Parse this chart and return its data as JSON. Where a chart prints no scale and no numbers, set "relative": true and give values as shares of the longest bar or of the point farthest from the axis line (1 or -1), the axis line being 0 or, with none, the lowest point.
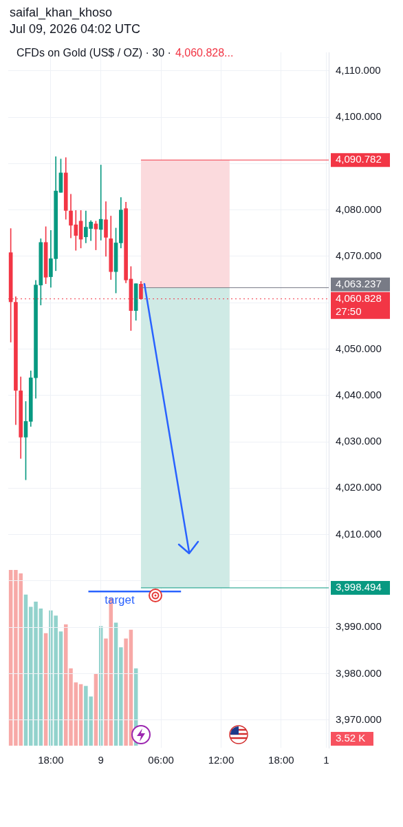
{
  "chart_data": [
    {
      "type": "candlestick",
      "title": "saifal_khan_khoso",
      "subtitle": "Jul 09, 2026 04:02 UTC",
      "categories": [
        null,
        null,
        null,
        null,
        null,
        null,
        null,
        null,
        "18:00",
        null,
        null,
        null,
        null,
        null,
        null,
        null,
        null,
        null,
        "9",
        null,
        null,
        null,
        null,
        null,
        null,
        null,
        null,
        null,
        null,
        null,
        "06:00",
        null,
        null,
        null,
        null,
        null,
        null,
        null,
        null,
        null,
        null,
        null,
        "12:00",
        null,
        null,
        null,
        null,
        null,
        null,
        null,
        null,
        null,
        null,
        null,
        "18:00",
        null,
        null,
        null,
        null,
        null,
        null,
        null,
        null,
        "1"
      ],
      "ohlc": [
        [
          4070.8,
          4076.0,
          4051.5,
          4060.2
        ],
        [
          4060.1,
          4061.3,
          4033.7,
          4041.1
        ],
        [
          4041.0,
          4044.0,
          4026.4,
          4031.0
        ],
        [
          4031.0,
          4038.7,
          4021.8,
          4034.4
        ],
        [
          4034.4,
          4045.3,
          4033.3,
          4043.8
        ],
        [
          4043.8,
          4064.8,
          4039.4,
          4063.8
        ],
        [
          4063.8,
          4073.8,
          4059.5,
          4073.0
        ],
        [
          4073.0,
          4076.4,
          4064.1,
          4065.5
        ],
        [
          4065.6,
          4075.6,
          4063.3,
          4069.5
        ],
        [
          4069.5,
          4091.5,
          4066.9,
          4084.1
        ],
        [
          4083.8,
          4091.0,
          4083.8,
          4088.0
        ],
        [
          4088.0,
          4091.3,
          4078.0,
          4079.9
        ],
        [
          4079.8,
          4083.4,
          4074.0,
          4076.7
        ],
        [
          4076.8,
          4079.9,
          4071.3,
          4074.5
        ],
        [
          4077.6,
          4079.9,
          4071.8,
          4073.7
        ],
        [
          4074.2,
          4079.8,
          4072.9,
          4076.3
        ],
        [
          4076.0,
          4077.7,
          4073.4,
          4077.4
        ],
        [
          4077.0,
          4077.6,
          4071.4,
          4075.9
        ],
        [
          4075.8,
          4089.7,
          4073.5,
          4078.0
        ],
        [
          4077.9,
          4081.8,
          4070.0,
          4074.1
        ],
        [
          4073.8,
          4078.7,
          4065.0,
          4066.7
        ],
        [
          4066.7,
          4076.1,
          4062.1,
          4072.9
        ],
        [
          4072.9,
          4082.7,
          4071.8,
          4080.0
        ],
        [
          4080.3,
          4081.7,
          4064.3,
          4064.9
        ],
        [
          4065.1,
          4067.8,
          4054.0,
          4058.3
        ],
        [
          4058.3,
          4064.1,
          4056.2,
          4064.1
        ],
        [
          4064.0,
          4064.6,
          4060.7,
          4060.828
        ],
        null,
        null,
        null,
        null,
        null,
        null,
        null,
        null,
        null,
        null,
        null,
        null,
        null,
        null,
        null,
        null,
        null,
        null,
        null,
        null,
        null,
        null,
        null,
        null,
        null,
        null,
        null,
        null,
        null,
        null,
        null,
        null,
        null,
        null,
        null,
        null,
        null
      ],
      "colors": [
        "#f23645",
        "#f23645",
        "#f23645",
        "#089981",
        "#089981",
        "#089981",
        "#089981",
        "#f23645",
        "#089981",
        "#089981",
        "#089981",
        "#f23645",
        "#f23645",
        "#f23645",
        "#f23645",
        "#089981",
        "#089981",
        "#f23645",
        "#089981",
        "#f23645",
        "#f23645",
        "#089981",
        "#089981",
        "#f23645",
        "#f23645",
        "#089981",
        "#f23645",
        null,
        null,
        null,
        null,
        null,
        null,
        null,
        null,
        null,
        null,
        null,
        null,
        null,
        null,
        null,
        null,
        null,
        null,
        null,
        null,
        null,
        null,
        null,
        null,
        null,
        null,
        null,
        null,
        null,
        null,
        null,
        null,
        null,
        null,
        null,
        null,
        null
      ],
      "ylim": [
        3964,
        4114
      ],
      "yticks": [
        {
          "value": 3970,
          "label": "3,970.000"
        },
        {
          "value": 3980,
          "label": "3,980.000"
        },
        {
          "value": 3990,
          "label": "3,990.000"
        },
        {
          "value": 4000,
          "label": null
        },
        {
          "value": 4010,
          "label": "4,010.000"
        },
        {
          "value": 4020,
          "label": "4,020.000"
        },
        {
          "value": 4030,
          "label": "4,030.000"
        },
        {
          "value": 4040,
          "label": "4,040.000"
        },
        {
          "value": 4050,
          "label": "4,050.000"
        },
        {
          "value": 4060,
          "label": null
        },
        {
          "value": 4070,
          "label": "4,070.000"
        },
        {
          "value": 4080,
          "label": "4,080.000"
        },
        {
          "value": 4090,
          "label": null
        },
        {
          "value": 4100,
          "label": "4,100.000"
        },
        {
          "value": 4110,
          "label": "4,110.000"
        }
      ],
      "grid": true,
      "bands": [
        {
          "axis": "y",
          "from": 4063.237,
          "to": 4090.782,
          "color": "#fbdadd"
        },
        {
          "axis": "y",
          "from": 3998.494,
          "to": 4063.237,
          "color": "#cfeae5"
        }
      ],
      "ref_lines": [
        {
          "axis": "y",
          "value": 4090.782,
          "label": "4,090.782",
          "color": "#f23645"
        },
        {
          "axis": "y",
          "value": 4063.237,
          "label": "4,063.237",
          "color": "#787b86"
        },
        {
          "axis": "y",
          "value": 4060.828,
          "label": "4,060.828",
          "color": "#f23645",
          "line_style": "dotted"
        },
        {
          "axis": "y",
          "value": 3998.494,
          "label": "3,998.494",
          "color": "#089981"
        },
        {
          "axis": "y",
          "value": 3997.7,
          "label": "target",
          "color": "#2962ff"
        }
      ],
      "annotations": [
        "CFDs on Gold (US$ / OZ) · 30 ·",
        "4,060.828...",
        "27:50"
      ]
    },
    {
      "type": "bar",
      "relative": true,
      "tick_labels": false,
      "categories": [
        null,
        null,
        null,
        null,
        null,
        null,
        null,
        null,
        null,
        null,
        null,
        null,
        null,
        null,
        null,
        null,
        null,
        null,
        null,
        null,
        null,
        null,
        null,
        null,
        null,
        null,
        null,
        null,
        null,
        null,
        null,
        null,
        null,
        null,
        null,
        null,
        null,
        null,
        null,
        null,
        null,
        null,
        null,
        null,
        null,
        null,
        null,
        null,
        null,
        null,
        null,
        null,
        null,
        null,
        null,
        null,
        null,
        null,
        null,
        null,
        null,
        null,
        null,
        null
      ],
      "values": [
        1,
        1,
        0.98,
        0.86,
        0.79,
        0.82,
        0.78,
        0.64,
        0.77,
        0.74,
        0.65,
        0.69,
        0.44,
        0.36,
        0.35,
        0.34,
        0.28,
        0.41,
        0.68,
        0.61,
        0.84,
        0.7,
        0.56,
        0.61,
        0.66,
        0.44,
        null,
        null,
        null,
        null,
        null,
        null,
        null,
        null,
        null,
        null,
        null,
        null,
        null,
        null,
        null,
        null,
        null,
        null,
        null,
        null,
        null,
        null,
        null,
        null,
        null,
        null,
        null,
        null,
        null,
        null,
        null,
        null,
        null,
        null,
        null,
        null,
        null,
        null
      ],
      "colors": [
        "#f7a9a7",
        "#f7a9a7",
        "#f7a9a7",
        "#92d2cc",
        "#92d2cc",
        "#92d2cc",
        "#92d2cc",
        "#f7a9a7",
        "#92d2cc",
        "#92d2cc",
        "#92d2cc",
        "#f7a9a7",
        "#f7a9a7",
        "#f7a9a7",
        "#f7a9a7",
        "#92d2cc",
        "#92d2cc",
        "#f7a9a7",
        "#92d2cc",
        "#f7a9a7",
        "#f7a9a7",
        "#92d2cc",
        "#92d2cc",
        "#f7a9a7",
        "#f7a9a7",
        "#92d2cc",
        null,
        null,
        null,
        null,
        null,
        null,
        null,
        null,
        null,
        null,
        null,
        null,
        null,
        null,
        null,
        null,
        null,
        null,
        null,
        null,
        null,
        null,
        null,
        null,
        null,
        null,
        null,
        null,
        null,
        null,
        null,
        null,
        null,
        null,
        null,
        null,
        null,
        null
      ],
      "annotations": [
        "3.52 K"
      ]
    }
  ]
}
